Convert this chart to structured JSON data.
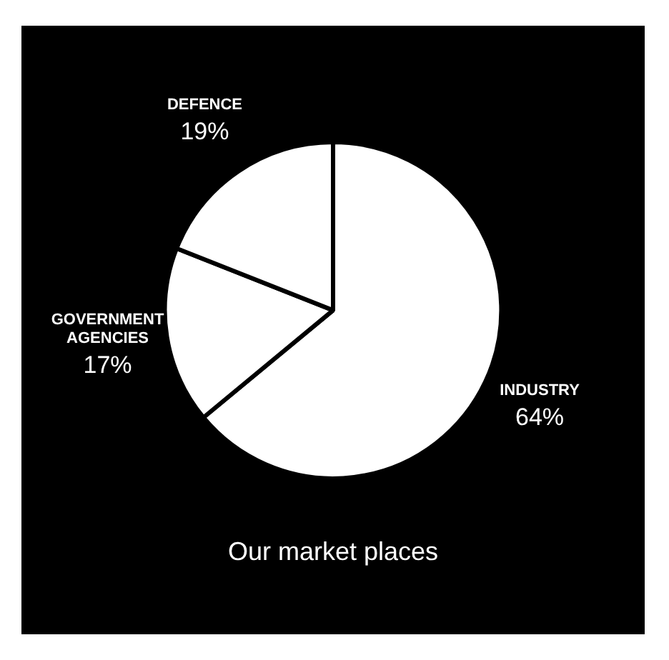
{
  "chart_data": {
    "type": "pie",
    "title": "Our market places",
    "categories": [
      "INDUSTRY",
      "GOVERNMENT AGENCIES",
      "DEFENCE"
    ],
    "values": [
      64,
      17,
      19
    ],
    "colors": [
      "#ffffff",
      "#ffffff",
      "#ffffff"
    ],
    "value_labels": [
      "64%",
      "17%",
      "19%"
    ],
    "legend": false
  }
}
